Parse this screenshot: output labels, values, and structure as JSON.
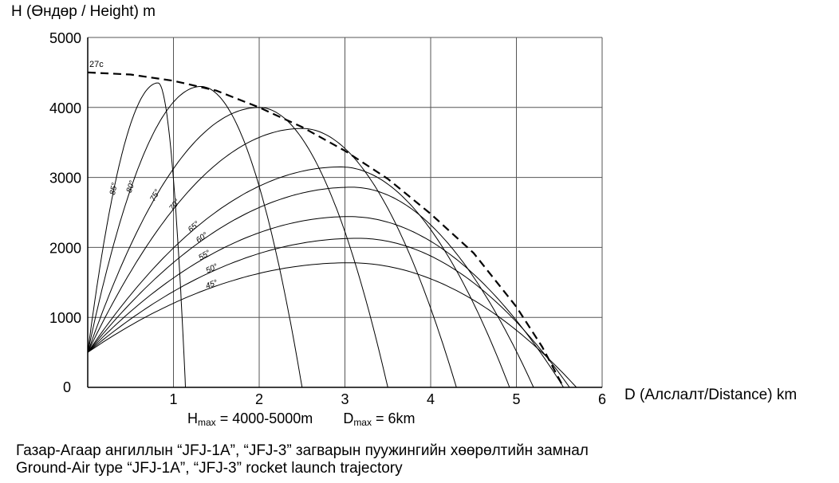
{
  "chart_data": {
    "type": "line",
    "ylabel": "H (Өндөр / Height) m",
    "xlabel": "D (Алслалт/Distance) km",
    "xlim": [
      0,
      6
    ],
    "ylim": [
      0,
      5000
    ],
    "x_ticks": [
      "0",
      "1",
      "2",
      "3",
      "4",
      "5",
      "6"
    ],
    "y_ticks": [
      "0",
      "1000",
      "2000",
      "3000",
      "4000",
      "5000"
    ],
    "x_tick_values": [
      0,
      1,
      2,
      3,
      4,
      5,
      6
    ],
    "y_tick_values": [
      0,
      1000,
      2000,
      3000,
      4000,
      5000
    ],
    "origin_label": "0",
    "grid": true,
    "launch_height": 500,
    "series": [
      {
        "name": "85°",
        "apex_x": 0.82,
        "apex_y": 4350,
        "land_x": 1.14
      },
      {
        "name": "80°",
        "apex_x": 1.32,
        "apex_y": 4300,
        "land_x": 2.5
      },
      {
        "name": "75°",
        "apex_x": 2.0,
        "apex_y": 4000,
        "land_x": 3.5
      },
      {
        "name": "70°",
        "apex_x": 2.5,
        "apex_y": 3700,
        "land_x": 4.3
      },
      {
        "name": "65°",
        "apex_x": 2.95,
        "apex_y": 3150,
        "land_x": 4.92
      },
      {
        "name": "60°",
        "apex_x": 3.08,
        "apex_y": 2860,
        "land_x": 5.2
      },
      {
        "name": "55°",
        "apex_x": 3.05,
        "apex_y": 2440,
        "land_x": 5.55
      },
      {
        "name": "50°",
        "apex_x": 3.15,
        "apex_y": 2130,
        "land_x": 5.62
      },
      {
        "name": "45°",
        "apex_x": 3.05,
        "apex_y": 1780,
        "land_x": 5.7
      }
    ],
    "envelope": {
      "name": "27с",
      "x": [
        0,
        0.5,
        1.0,
        1.5,
        2.0,
        2.5,
        3.0,
        3.5,
        4.0,
        4.5,
        5.0,
        5.3,
        5.55
      ],
      "y": [
        4500,
        4470,
        4380,
        4240,
        4000,
        3720,
        3380,
        2980,
        2480,
        1920,
        1150,
        580,
        0
      ]
    },
    "params": {
      "hmax_symbol": "H",
      "hmax_sub": "max",
      "hmax_value": "= 4000-5000m",
      "dmax_symbol": "D",
      "dmax_sub": "max",
      "dmax_value": "= 6km"
    }
  },
  "caption": {
    "line1": "Газар-Агаар ангиллын “JFJ-1A”, “JFJ-3” загварын пуужингийн хөөрөлтийн замнал",
    "line2": "Ground-Air type “JFJ-1A”, “JFJ-3” rocket launch trajectory"
  },
  "colors": {
    "line": "#000000",
    "grid": "#555555"
  }
}
